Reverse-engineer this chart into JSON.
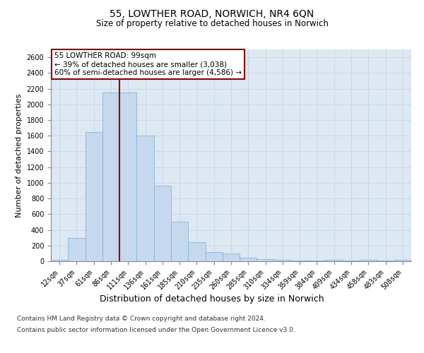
{
  "title": "55, LOWTHER ROAD, NORWICH, NR4 6QN",
  "subtitle": "Size of property relative to detached houses in Norwich",
  "xlabel": "Distribution of detached houses by size in Norwich",
  "ylabel": "Number of detached properties",
  "categories": [
    "12sqm",
    "37sqm",
    "61sqm",
    "86sqm",
    "111sqm",
    "136sqm",
    "161sqm",
    "185sqm",
    "210sqm",
    "235sqm",
    "260sqm",
    "285sqm",
    "310sqm",
    "334sqm",
    "359sqm",
    "384sqm",
    "409sqm",
    "434sqm",
    "458sqm",
    "483sqm",
    "508sqm"
  ],
  "values": [
    20,
    300,
    1650,
    2150,
    2150,
    1600,
    960,
    500,
    245,
    120,
    100,
    45,
    25,
    15,
    10,
    5,
    20,
    5,
    20,
    5,
    20
  ],
  "bar_color": "#c5d8ee",
  "bar_edge_color": "#7bafd4",
  "vline_color": "#8b0000",
  "annotation_box_text": "55 LOWTHER ROAD: 99sqm\n← 39% of detached houses are smaller (3,038)\n60% of semi-detached houses are larger (4,586) →",
  "annotation_box_color": "#8b0000",
  "annotation_box_fill": "#ffffff",
  "ylim": [
    0,
    2700
  ],
  "yticks": [
    0,
    200,
    400,
    600,
    800,
    1000,
    1200,
    1400,
    1600,
    1800,
    2000,
    2200,
    2400,
    2600
  ],
  "grid_color": "#c8d8e8",
  "background_color": "#dde8f2",
  "footer_line1": "Contains HM Land Registry data © Crown copyright and database right 2024.",
  "footer_line2": "Contains public sector information licensed under the Open Government Licence v3.0.",
  "title_fontsize": 10,
  "subtitle_fontsize": 8.5,
  "tick_fontsize": 7,
  "ylabel_fontsize": 8,
  "xlabel_fontsize": 9,
  "footer_fontsize": 6.5
}
